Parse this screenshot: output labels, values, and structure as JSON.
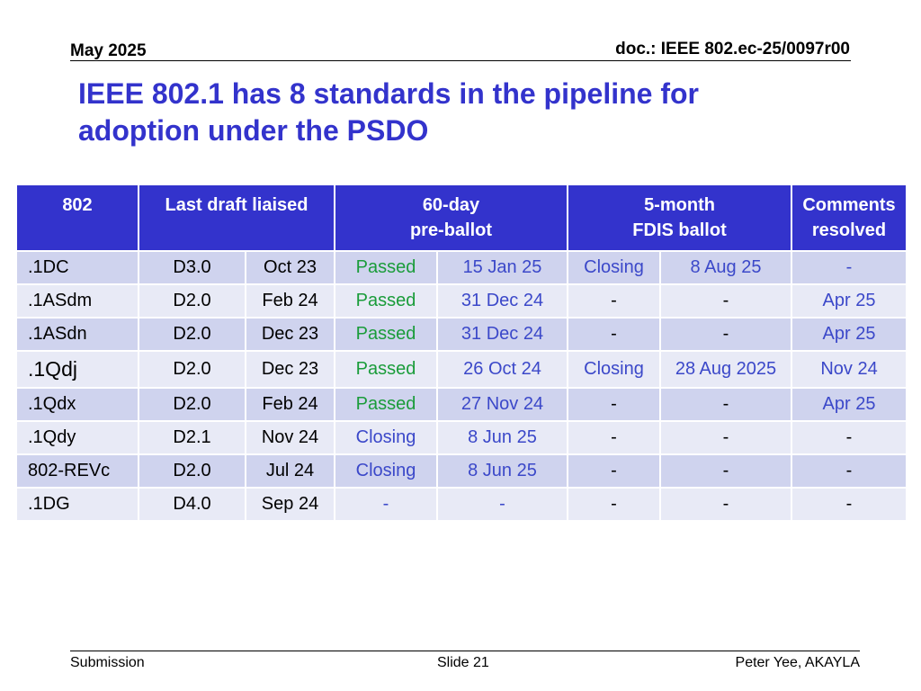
{
  "header": {
    "date": "May 2025",
    "doc": "doc.: IEEE 802.ec-25/0097r00"
  },
  "title": {
    "line1": "IEEE 802.1 has 8 standards in the pipeline for",
    "line2": "adoption under the PSDO"
  },
  "table": {
    "headers": {
      "col1": "802",
      "col2": "Last draft liaised",
      "col3_line1": "60-day",
      "col3_line2": "pre-ballot",
      "col4_line1": "5-month",
      "col4_line2": "FDIS ballot",
      "col5_line1": "Comments",
      "col5_line2": "resolved"
    },
    "rows": [
      {
        "std": ".1DC",
        "draft": "D3.0",
        "draft_date": "Oct 23",
        "pre_status": "Passed",
        "pre_date": "15 Jan 25",
        "fdis_status": "Closing",
        "fdis_date": "8 Aug 25",
        "resolved": "-"
      },
      {
        "std": ".1ASdm",
        "draft": "D2.0",
        "draft_date": "Feb 24",
        "pre_status": "Passed",
        "pre_date": "31 Dec 24",
        "fdis_status": "-",
        "fdis_date": "-",
        "resolved": "Apr 25"
      },
      {
        "std": ".1ASdn",
        "draft": "D2.0",
        "draft_date": "Dec 23",
        "pre_status": "Passed",
        "pre_date": "31 Dec 24",
        "fdis_status": "-",
        "fdis_date": "-",
        "resolved": "Apr 25"
      },
      {
        "std": ".1Qdj",
        "draft": "D2.0",
        "draft_date": "Dec 23",
        "pre_status": "Passed",
        "pre_date": "26 Oct 24",
        "fdis_status": "Closing",
        "fdis_date": "28 Aug 2025",
        "resolved": "Nov 24"
      },
      {
        "std": ".1Qdx",
        "draft": "D2.0",
        "draft_date": "Feb 24",
        "pre_status": "Passed",
        "pre_date": "27 Nov 24",
        "fdis_status": "-",
        "fdis_date": "-",
        "resolved": "Apr 25"
      },
      {
        "std": ".1Qdy",
        "draft": "D2.1",
        "draft_date": "Nov 24",
        "pre_status": "Closing",
        "pre_date": "8 Jun 25",
        "fdis_status": "-",
        "fdis_date": "-",
        "resolved": "-"
      },
      {
        "std": "802-REVc",
        "draft": "D2.0",
        "draft_date": "Jul 24",
        "pre_status": "Closing",
        "pre_date": "8 Jun 25",
        "fdis_status": "-",
        "fdis_date": "-",
        "resolved": "-"
      },
      {
        "std": ".1DG",
        "draft": "D4.0",
        "draft_date": "Sep 24",
        "pre_status": "-",
        "pre_date": "-",
        "fdis_status": "-",
        "fdis_date": "-",
        "resolved": "-"
      }
    ]
  },
  "footer": {
    "left": "Submission",
    "center": "Slide 21",
    "right": "Peter Yee, AKAYLA"
  },
  "colors": {
    "title": "#3333cc",
    "header_bg": "#3333cc",
    "row_odd": "#cfd3ee",
    "row_even": "#e8eaf6",
    "passed": "#1a9c3a",
    "blue_text": "#3b48c9"
  }
}
